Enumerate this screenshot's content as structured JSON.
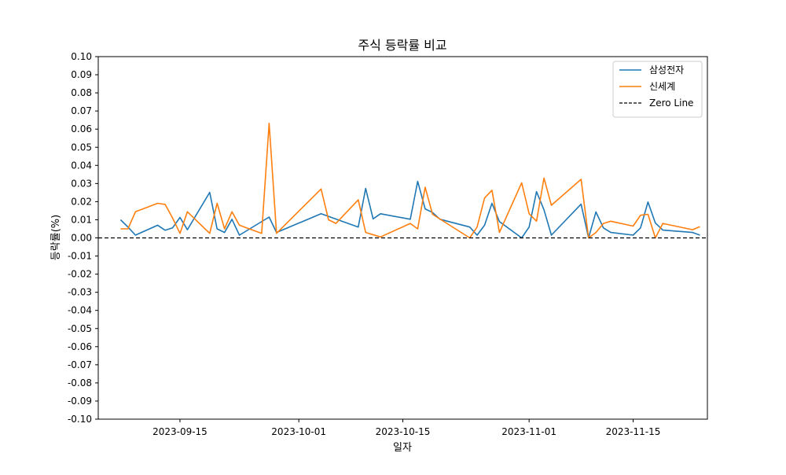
{
  "chart_data": {
    "type": "line",
    "title": "주식 등락률 비교",
    "xlabel": "일자",
    "ylabel": "등락률(%)",
    "ylim": [
      -0.1,
      0.1
    ],
    "xlim": [
      "2023-09-04",
      "2023-11-25"
    ],
    "grid": false,
    "legend_position": "top-right",
    "x_ticks": [
      "2023-09-15",
      "2023-10-01",
      "2023-10-15",
      "2023-11-01",
      "2023-11-15"
    ],
    "y_ticks": [
      0.1,
      0.09,
      0.08,
      0.07,
      0.06,
      0.05,
      0.04,
      0.03,
      0.02,
      0.01,
      0.0,
      -0.01,
      -0.02,
      -0.03,
      -0.04,
      -0.05,
      -0.06,
      -0.07,
      -0.08,
      -0.09,
      -0.1
    ],
    "series": [
      {
        "name": "삼성전자",
        "color": "#1f77b4",
        "style": "solid",
        "points": [
          [
            "2023-09-07",
            0.01
          ],
          [
            "2023-09-08",
            0.006
          ],
          [
            "2023-09-09",
            0.0015
          ],
          [
            "2023-09-12",
            0.007
          ],
          [
            "2023-09-13",
            0.0042
          ],
          [
            "2023-09-14",
            0.0055
          ],
          [
            "2023-09-15",
            0.0113
          ],
          [
            "2023-09-16",
            0.0045
          ],
          [
            "2023-09-19",
            0.0251
          ],
          [
            "2023-09-20",
            0.005
          ],
          [
            "2023-09-21",
            0.003
          ],
          [
            "2023-09-22",
            0.0103
          ],
          [
            "2023-09-23",
            0.0015
          ],
          [
            "2023-09-27",
            0.0115
          ],
          [
            "2023-09-28",
            0.003
          ],
          [
            "2023-10-04",
            0.0133
          ],
          [
            "2023-10-09",
            0.006
          ],
          [
            "2023-10-10",
            0.0273
          ],
          [
            "2023-10-11",
            0.0105
          ],
          [
            "2023-10-12",
            0.0133
          ],
          [
            "2023-10-16",
            0.0103
          ],
          [
            "2023-10-17",
            0.0312
          ],
          [
            "2023-10-18",
            0.016
          ],
          [
            "2023-10-19",
            0.014
          ],
          [
            "2023-10-20",
            0.0103
          ],
          [
            "2023-10-24",
            0.006
          ],
          [
            "2023-10-25",
            0.0015
          ],
          [
            "2023-10-26",
            0.007
          ],
          [
            "2023-10-27",
            0.0191
          ],
          [
            "2023-10-28",
            0.009
          ],
          [
            "2023-10-31",
            0.0
          ],
          [
            "2023-11-01",
            0.006
          ],
          [
            "2023-11-02",
            0.0255
          ],
          [
            "2023-11-03",
            0.0155
          ],
          [
            "2023-11-04",
            0.0015
          ],
          [
            "2023-11-08",
            0.0186
          ],
          [
            "2023-11-09",
            0.0
          ],
          [
            "2023-11-10",
            0.0143
          ],
          [
            "2023-11-11",
            0.0055
          ],
          [
            "2023-11-12",
            0.003
          ],
          [
            "2023-11-15",
            0.0015
          ],
          [
            "2023-11-16",
            0.0055
          ],
          [
            "2023-11-17",
            0.0198
          ],
          [
            "2023-11-18",
            0.0082
          ],
          [
            "2023-11-19",
            0.0043
          ],
          [
            "2023-11-23",
            0.003
          ],
          [
            "2023-11-24",
            0.0015
          ]
        ]
      },
      {
        "name": "신세계",
        "color": "#ff7f0e",
        "style": "solid",
        "points": [
          [
            "2023-09-07",
            0.005
          ],
          [
            "2023-09-08",
            0.005
          ],
          [
            "2023-09-09",
            0.0144
          ],
          [
            "2023-09-12",
            0.0191
          ],
          [
            "2023-09-13",
            0.0185
          ],
          [
            "2023-09-14",
            0.011
          ],
          [
            "2023-09-15",
            0.0025
          ],
          [
            "2023-09-16",
            0.0144
          ],
          [
            "2023-09-19",
            0.0025
          ],
          [
            "2023-09-20",
            0.0191
          ],
          [
            "2023-09-21",
            0.005
          ],
          [
            "2023-09-22",
            0.0144
          ],
          [
            "2023-09-23",
            0.007
          ],
          [
            "2023-09-26",
            0.0025
          ],
          [
            "2023-09-27",
            0.0632
          ],
          [
            "2023-09-28",
            0.0025
          ],
          [
            "2023-10-04",
            0.027
          ],
          [
            "2023-10-05",
            0.01
          ],
          [
            "2023-10-06",
            0.008
          ],
          [
            "2023-10-09",
            0.021
          ],
          [
            "2023-10-10",
            0.003
          ],
          [
            "2023-10-12",
            0.0005
          ],
          [
            "2023-10-16",
            0.008
          ],
          [
            "2023-10-17",
            0.005
          ],
          [
            "2023-10-18",
            0.028
          ],
          [
            "2023-10-19",
            0.013
          ],
          [
            "2023-10-24",
            0.0
          ],
          [
            "2023-10-25",
            0.006
          ],
          [
            "2023-10-26",
            0.022
          ],
          [
            "2023-10-27",
            0.0263
          ],
          [
            "2023-10-28",
            0.003
          ],
          [
            "2023-10-31",
            0.0304
          ],
          [
            "2023-11-01",
            0.0133
          ],
          [
            "2023-11-02",
            0.0092
          ],
          [
            "2023-11-03",
            0.033
          ],
          [
            "2023-11-04",
            0.018
          ],
          [
            "2023-11-08",
            0.0323
          ],
          [
            "2023-11-09",
            0.0
          ],
          [
            "2023-11-10",
            0.003
          ],
          [
            "2023-11-11",
            0.008
          ],
          [
            "2023-11-12",
            0.0092
          ],
          [
            "2023-11-15",
            0.0065
          ],
          [
            "2023-11-16",
            0.0125
          ],
          [
            "2023-11-17",
            0.013
          ],
          [
            "2023-11-18",
            0.0
          ],
          [
            "2023-11-19",
            0.008
          ],
          [
            "2023-11-23",
            0.0045
          ],
          [
            "2023-11-24",
            0.0062
          ]
        ]
      },
      {
        "name": "Zero Line",
        "color": "#000000",
        "style": "dashed",
        "constant": 0.0
      }
    ]
  }
}
